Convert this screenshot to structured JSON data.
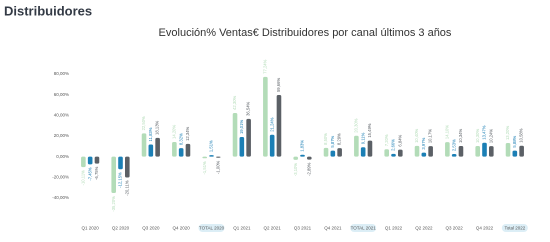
{
  "page_title": "Distribuidores",
  "chart_data": {
    "type": "bar",
    "title": "Evolución% Ventas€ Distribuidores por canal últimos 3 años",
    "categories": [
      "Q1 2020",
      "Q2 2020",
      "Q3 2020",
      "Q4 2020",
      "TOTAL 2020",
      "Q1 2021",
      "Q2 2021",
      "Q3 2021",
      "Q4 2021",
      "TOTAL 2021",
      "Q1 2022",
      "Q2 2022",
      "Q3 2022",
      "Q4 2022",
      "Total 2022"
    ],
    "series": [
      {
        "color": "#b3dcb8",
        "values": [
          -10.11,
          -35.2,
          22.5,
          14.2,
          -1.51,
          42.3,
          77.24,
          -3.1,
          8.5,
          20.3,
          7.2,
          10.4,
          14.1,
          10.3,
          13.2
        ],
        "value_labels": [
          "-10,11%",
          "-35,20%",
          "22,50%",
          "14,20%",
          "-1,51%",
          "42,30%",
          "77,24%",
          "-3,10%",
          "8,50%",
          "20,30%",
          "7,20%",
          "10,40%",
          "14,10%",
          "10,30%",
          "13,20%"
        ]
      },
      {
        "color": "#1b7fb5",
        "values": [
          -7.45,
          -12.15,
          11.83,
          8.32,
          1.51,
          19.01,
          21.24,
          1.83,
          5.87,
          9.11,
          2.66,
          3.97,
          2.53,
          13.47,
          5.88
        ],
        "value_labels": [
          "-7,45%",
          "-12,15%",
          "11,83%",
          "8,32%",
          "1,51%",
          "19,01%",
          "21,24%",
          "1,83%",
          "5,87%",
          "9,11%",
          "2,66%",
          "3,97%",
          "2,53%",
          "13,47%",
          "5,88%"
        ]
      },
      {
        "color": "#5b6066",
        "values": [
          -6.75,
          -20.11,
          18.13,
          12.34,
          -1.0,
          36.54,
          59.66,
          -2.89,
          8.29,
          15.49,
          6.84,
          10.17,
          10.34,
          10.24,
          10.58
        ],
        "value_labels": [
          "-6,75%",
          "-20,11%",
          "18,13%",
          "12,34%",
          "-1,00%",
          "36,54%",
          "59,66%",
          "-2,89%",
          "8,29%",
          "15,49%",
          "6,84%",
          "10,17%",
          "10,34%",
          "10,24%",
          "10,58%"
        ]
      }
    ],
    "ylim": [
      -40,
      80
    ],
    "yticks": [
      {
        "value": 80,
        "label": "80,00%"
      },
      {
        "value": 60,
        "label": "60,00%"
      },
      {
        "value": 40,
        "label": "40,00%"
      },
      {
        "value": 20,
        "label": "20,00%"
      },
      {
        "value": 0,
        "label": "0,00%"
      },
      {
        "value": -20,
        "label": "-20,00%"
      },
      {
        "value": -40,
        "label": "-40,00%"
      }
    ]
  }
}
